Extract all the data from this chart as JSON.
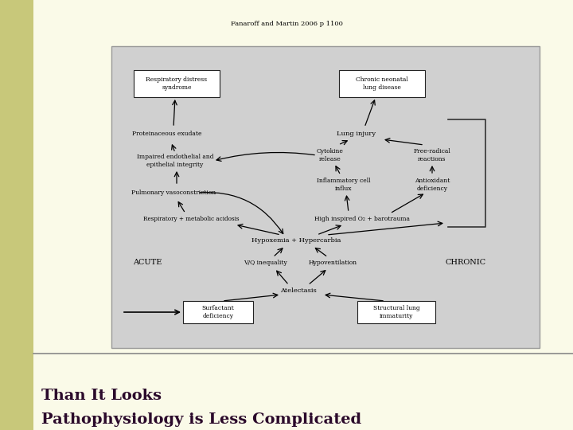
{
  "title_line1": "Pathophysiology is Less Complicated",
  "title_line2": "Than It Looks",
  "citation": "Fanaroff and Martin 2006 p 1100",
  "bg_color": "#FAFAE8",
  "left_bar_color": "#C8C87A",
  "title_color": "#2B0A2B",
  "diagram_bg": "#D0D0D0",
  "diagram_border": "#999999",
  "figw": 7.2,
  "figh": 5.4,
  "dpi": 100
}
